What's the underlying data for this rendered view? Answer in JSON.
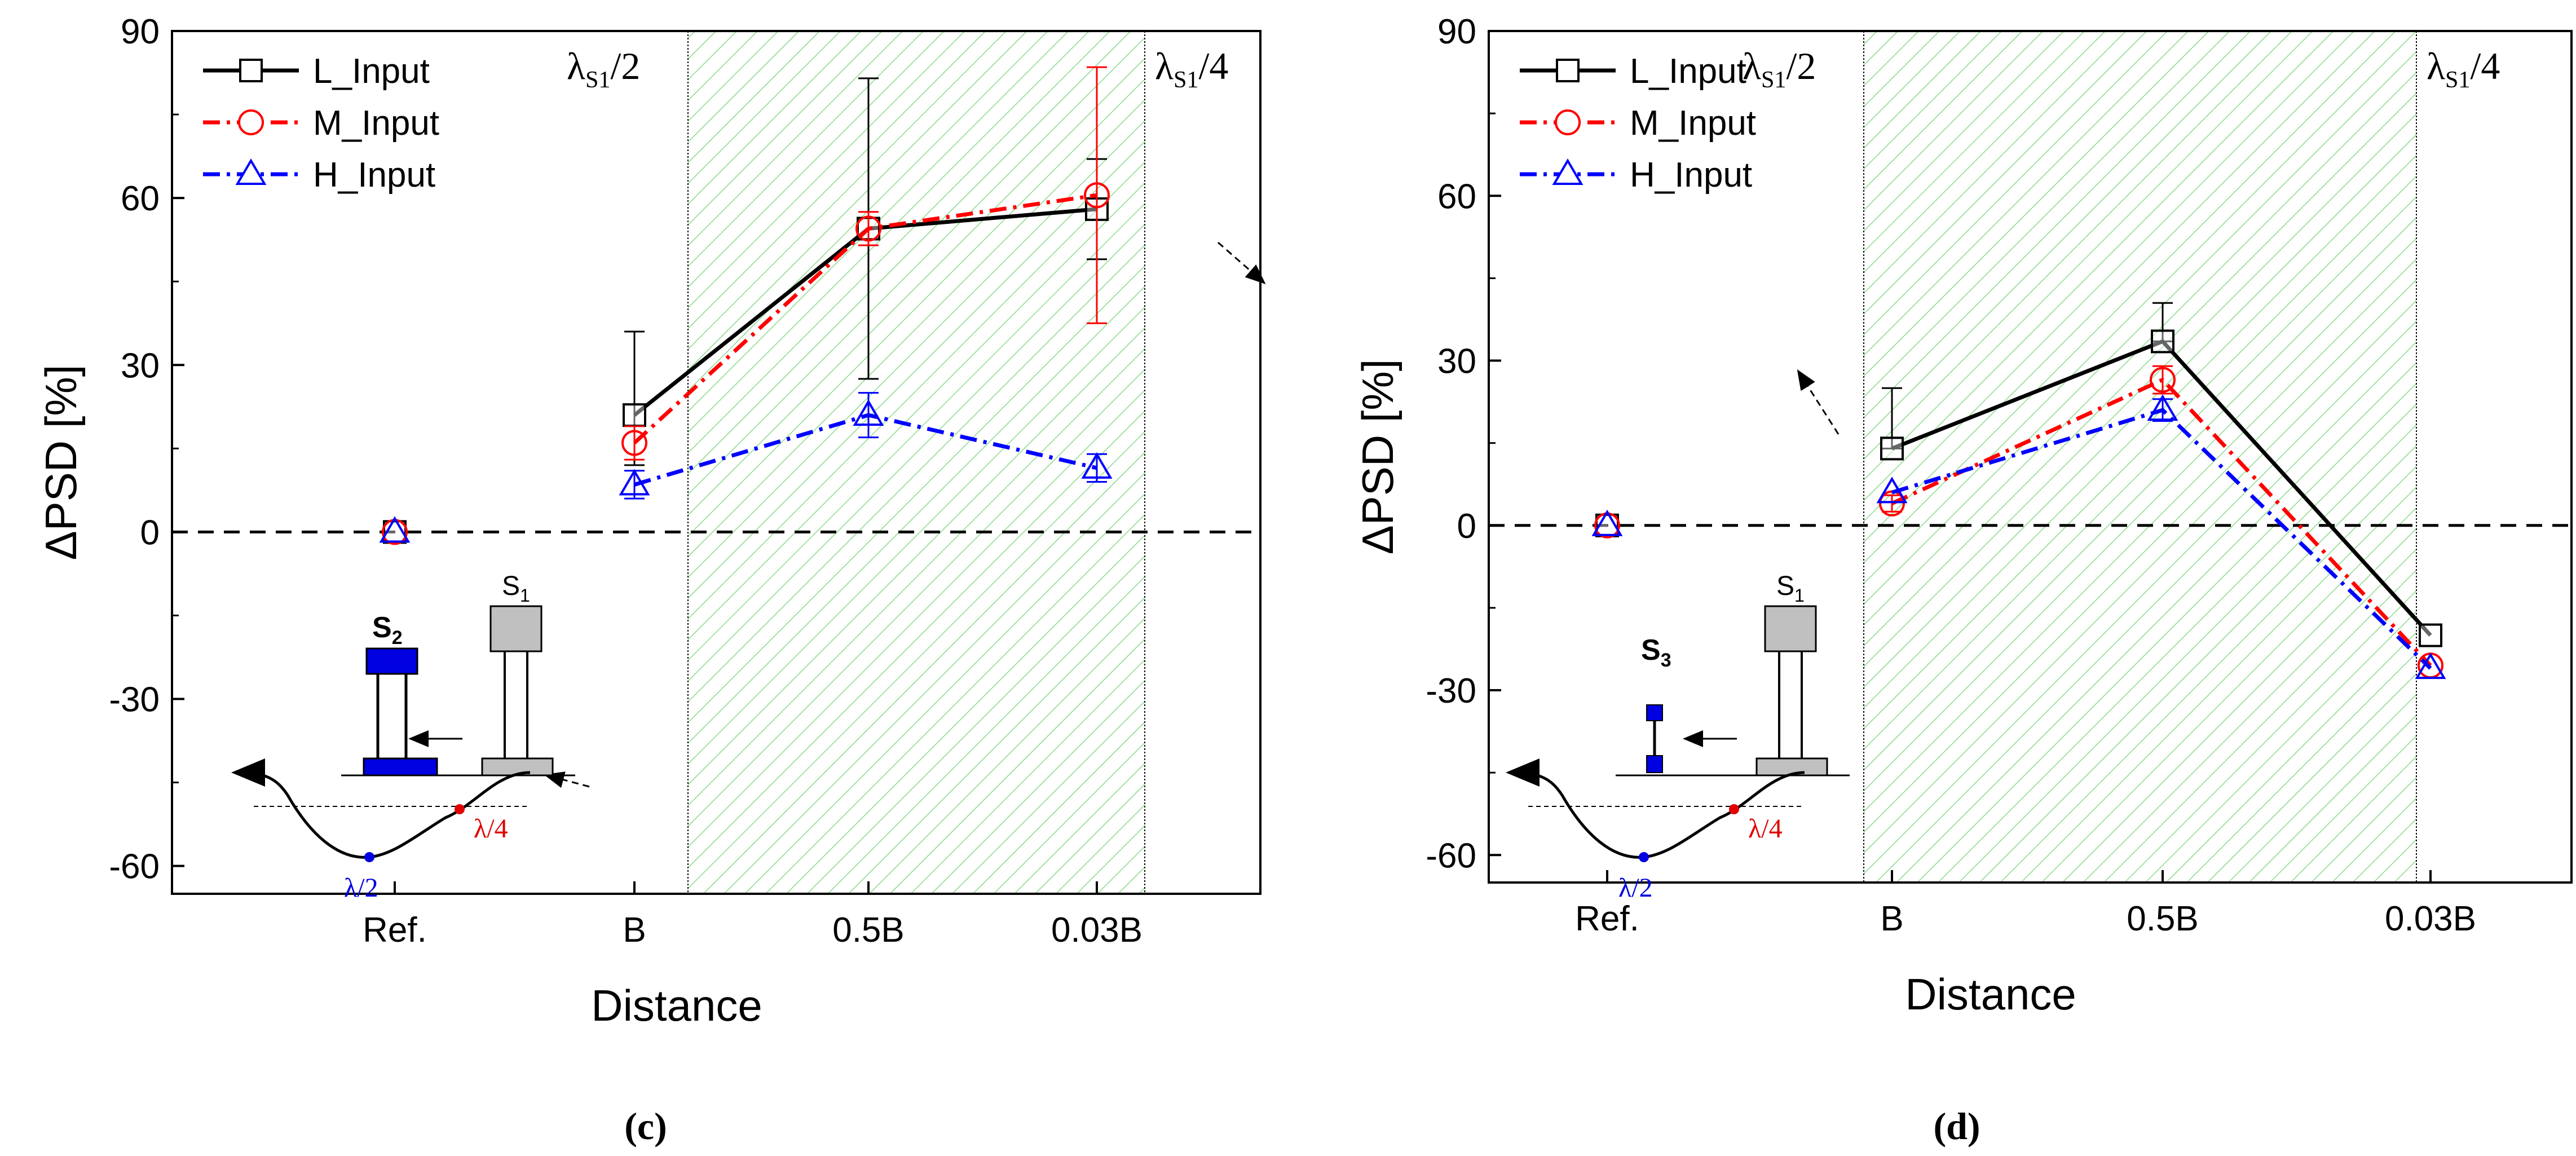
{
  "chart_data": [
    {
      "type": "line",
      "panel_label": "(c)",
      "xlabel": "Distance",
      "ylabel": "ΔPSD [%]",
      "categories": [
        "Ref.",
        "B",
        "0.5B",
        "0.03B"
      ],
      "ylim": [
        -65,
        90
      ],
      "yticks": [
        -60,
        -30,
        0,
        30,
        60,
        90
      ],
      "zero_line": true,
      "region_labels": [
        "λS1/2",
        "λS1/4"
      ],
      "shaded_region": "between λS1/2 and λS1/4 (green hatched)",
      "legend": [
        "L_Input",
        "M_Input",
        "H_Input"
      ],
      "legend_position": "top-left",
      "series": [
        {
          "name": "L_Input",
          "values": [
            0,
            21,
            54.5,
            58
          ],
          "err_low": [
            0,
            9,
            27,
            9
          ],
          "err_high": [
            0,
            15,
            27,
            9
          ],
          "color": "#000000",
          "marker": "square",
          "linestyle": "solid"
        },
        {
          "name": "M_Input",
          "values": [
            0,
            16,
            54.5,
            60.5
          ],
          "err_low": [
            0,
            3,
            3,
            23
          ],
          "err_high": [
            0,
            3,
            3,
            23
          ],
          "color": "#ff0000",
          "marker": "circle",
          "linestyle": "dashdot"
        },
        {
          "name": "H_Input",
          "values": [
            0,
            8.5,
            21,
            11.5
          ],
          "err_low": [
            0,
            2.5,
            4,
            2.5
          ],
          "err_high": [
            0,
            2.5,
            4,
            2.5
          ],
          "color": "#0000ff",
          "marker": "triangle",
          "linestyle": "dashdot"
        }
      ],
      "inset": {
        "target": "S",
        "target_sub": "2",
        "source": "S",
        "source_sub": "1",
        "lambda_half": "λ/2",
        "lambda_quarter": "λ/4"
      }
    },
    {
      "type": "line",
      "panel_label": "(d)",
      "xlabel": "Distance",
      "ylabel": "ΔPSD [%]",
      "categories": [
        "Ref.",
        "B",
        "0.5B",
        "0.03B"
      ],
      "ylim": [
        -65,
        90
      ],
      "yticks": [
        -60,
        -30,
        0,
        30,
        60,
        90
      ],
      "zero_line": true,
      "region_labels": [
        "λS1/2",
        "λS1/4"
      ],
      "shaded_region": "between λS1/2 and λS1/4 (green hatched)",
      "legend": [
        "L_Input",
        "M_Input",
        "H_Input"
      ],
      "legend_position": "top-left",
      "series": [
        {
          "name": "L_Input",
          "values": [
            0,
            14,
            33.5,
            -20
          ],
          "err_low": [
            0,
            0,
            0,
            0
          ],
          "err_high": [
            0,
            11,
            7,
            0
          ],
          "color": "#000000",
          "marker": "square",
          "linestyle": "solid"
        },
        {
          "name": "M_Input",
          "values": [
            0,
            4,
            26.5,
            -25.5
          ],
          "err_low": [
            0,
            1.5,
            2.5,
            0
          ],
          "err_high": [
            0,
            1.5,
            2.5,
            0
          ],
          "color": "#ff0000",
          "marker": "circle",
          "linestyle": "dashdot"
        },
        {
          "name": "H_Input",
          "values": [
            0,
            6,
            21,
            -26
          ],
          "err_low": [
            0,
            0,
            2,
            0
          ],
          "err_high": [
            0,
            0,
            2,
            0
          ],
          "color": "#0000ff",
          "marker": "triangle",
          "linestyle": "dashdot"
        }
      ],
      "inset": {
        "target": "S",
        "target_sub": "3",
        "source": "S",
        "source_sub": "1",
        "lambda_half": "λ/2",
        "lambda_quarter": "λ/4"
      }
    }
  ]
}
